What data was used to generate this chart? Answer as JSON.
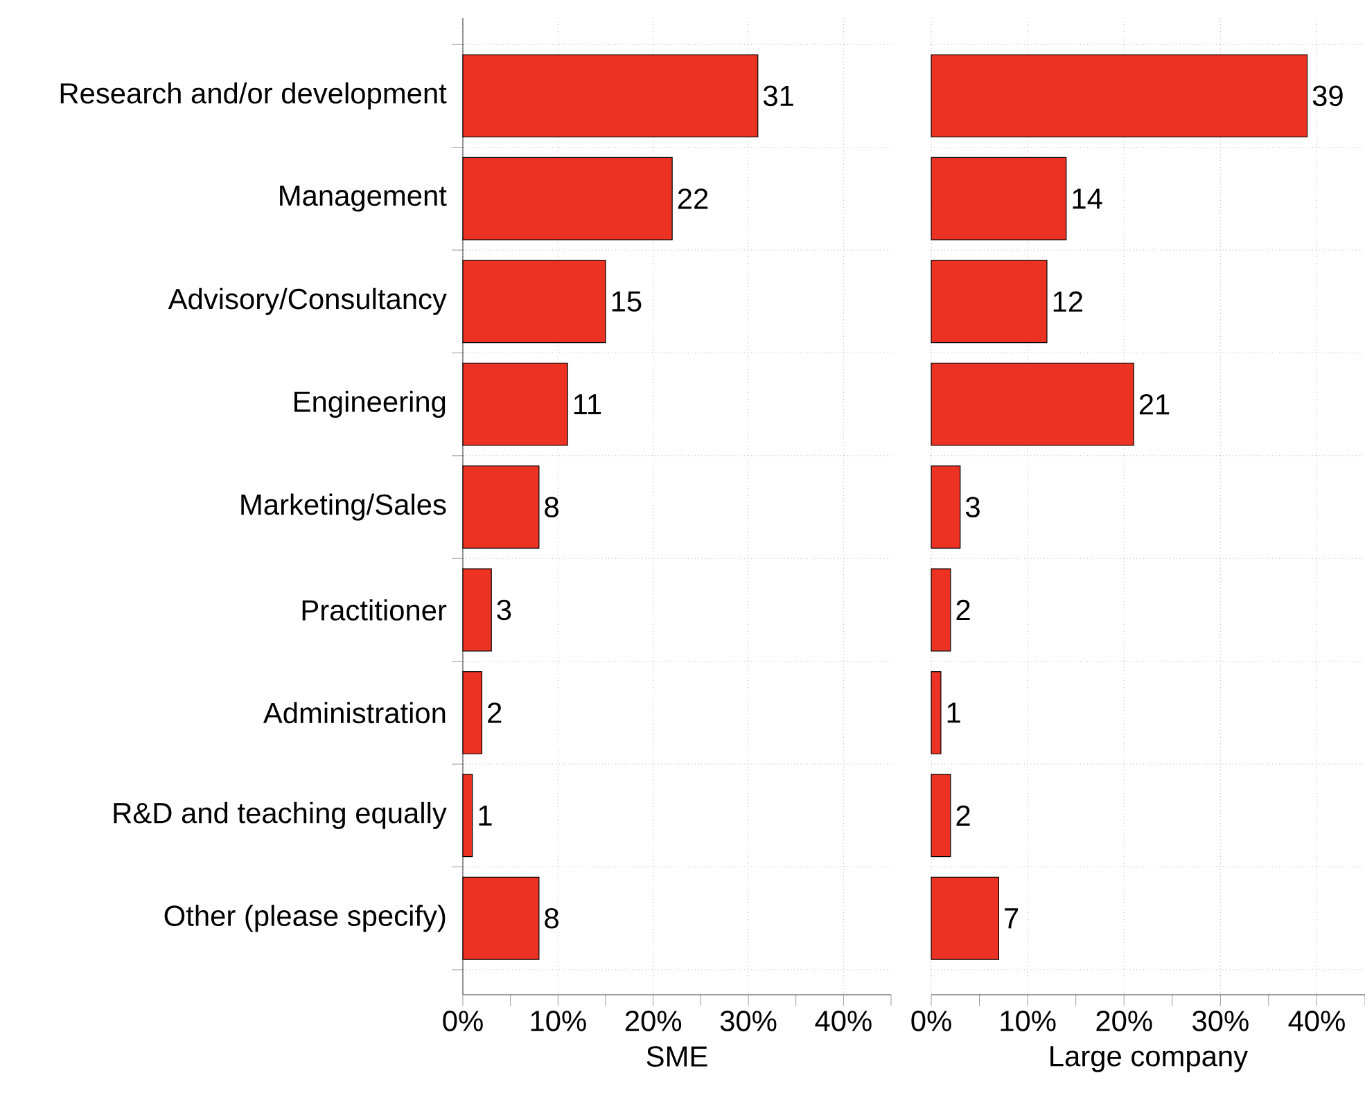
{
  "chart_data": [
    {
      "type": "bar",
      "orientation": "horizontal",
      "xlabel": "SME",
      "categories": [
        "Research and/or development",
        "Management",
        "Advisory/Consultancy",
        "Engineering",
        "Marketing/Sales",
        "Practitioner",
        "Administration",
        "R&D and teaching equally",
        "Other (please specify)"
      ],
      "values": [
        31,
        22,
        15,
        11,
        8,
        3,
        2,
        1,
        8
      ],
      "color": "#ec3223",
      "xlim": [
        0,
        45
      ],
      "xticks": [
        {
          "value": 0,
          "label": "0%"
        },
        {
          "value": 5,
          "label": null
        },
        {
          "value": 10,
          "label": "10%"
        },
        {
          "value": 15,
          "label": null
        },
        {
          "value": 20,
          "label": "20%"
        },
        {
          "value": 25,
          "label": null
        },
        {
          "value": 30,
          "label": "30%"
        },
        {
          "value": 35,
          "label": null
        },
        {
          "value": 40,
          "label": "40%"
        },
        {
          "value": 45,
          "label": null
        }
      ],
      "grid": true,
      "data_labels": true
    },
    {
      "type": "bar",
      "orientation": "horizontal",
      "xlabel": "Large company",
      "values": [
        39,
        14,
        12,
        21,
        3,
        2,
        1,
        2,
        7
      ],
      "color": "#ec3223",
      "xlim": [
        0,
        45
      ],
      "xticks": [
        {
          "value": 0,
          "label": "0%"
        },
        {
          "value": 5,
          "label": null
        },
        {
          "value": 10,
          "label": "10%"
        },
        {
          "value": 15,
          "label": null
        },
        {
          "value": 20,
          "label": "20%"
        },
        {
          "value": 25,
          "label": null
        },
        {
          "value": 30,
          "label": "30%"
        },
        {
          "value": 35,
          "label": null
        },
        {
          "value": 40,
          "label": "40%"
        },
        {
          "value": 45,
          "label": null
        }
      ],
      "grid": true,
      "data_labels": true,
      "tick_labels": "x"
    }
  ]
}
